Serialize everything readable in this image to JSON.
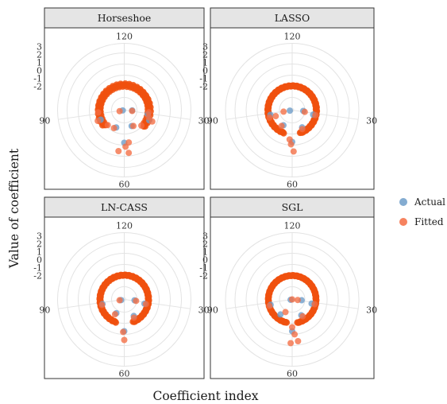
{
  "chart_data": {
    "type": "scatter",
    "coord": "polar",
    "xlabel": "Coefficient index",
    "ylabel": "Value of coefficient",
    "y_ticks": [
      "3",
      "2",
      "1",
      "0",
      "-1",
      "-2"
    ],
    "ylim": [
      -5,
      3.4
    ],
    "angle_ticks": [
      {
        "index": 120,
        "label": "120",
        "deg": 0
      },
      {
        "index": 30,
        "label": "30",
        "deg": 98
      },
      {
        "index": 60,
        "label": "60",
        "deg": 180
      },
      {
        "index": 90,
        "label": "90",
        "deg": 262
      }
    ],
    "legend": {
      "entries": [
        {
          "label": "Actual",
          "color": "#6f9ec9"
        },
        {
          "label": "Fitted",
          "color": "#f46d43"
        }
      ]
    },
    "series_colors": {
      "actual": "#6f9ec9",
      "fitted": "#f46d43",
      "dense_fitted": "#f0500e"
    },
    "panels": [
      {
        "name": "Horseshoe",
        "ring": {
          "radius": -1.85,
          "gap": [
            130,
            230
          ],
          "wobble": 0.18
        },
        "actual": [
          [
            -4.0,
            92
          ],
          [
            -4.8,
            260
          ],
          [
            -0.9,
            180
          ],
          [
            -2.6,
            205
          ],
          [
            -2.8,
            155
          ],
          [
            -1.6,
            112
          ],
          [
            -1.8,
            248
          ],
          [
            -2.0,
            100
          ]
        ],
        "fitted": [
          [
            -4.0,
            96
          ],
          [
            -4.4,
            258
          ],
          [
            -0.9,
            172
          ],
          [
            -2.4,
            210
          ],
          [
            -2.7,
            150
          ],
          [
            -1.2,
            112
          ],
          [
            -1.4,
            248
          ],
          [
            -1.8,
            106
          ],
          [
            0.4,
            174
          ],
          [
            0.2,
            188
          ],
          [
            -0.4,
            178
          ],
          [
            -2.2,
            228
          ],
          [
            -2.1,
            132
          ],
          [
            -1.7,
            265
          ],
          [
            -1.9,
            95
          ]
        ]
      },
      {
        "name": "LASSO",
        "ring": {
          "radius": -1.95,
          "gap": [
            162,
            198
          ],
          "wobble": 0.05
        },
        "actual": [
          [
            -4.7,
            258
          ],
          [
            -3.6,
            94
          ],
          [
            -1.0,
            180
          ],
          [
            -2.8,
            210
          ],
          [
            -2.5,
            150
          ],
          [
            -2.3,
            102
          ],
          [
            -2.2,
            258
          ]
        ],
        "fitted": [
          [
            -3.9,
            260
          ],
          [
            -3.4,
            98
          ],
          [
            -0.7,
            182
          ],
          [
            -2.6,
            214
          ],
          [
            -2.3,
            152
          ],
          [
            -2.0,
            102
          ],
          [
            -2.0,
            252
          ],
          [
            0.2,
            178
          ],
          [
            -1.3,
            185
          ],
          [
            -2.8,
            250
          ]
        ]
      },
      {
        "name": "LN-CASS",
        "ring": {
          "radius": -1.95,
          "gap": [
            160,
            200
          ],
          "wobble": 0.05
        },
        "actual": [
          [
            -4.6,
            258
          ],
          [
            -3.7,
            95
          ],
          [
            -1.0,
            180
          ],
          [
            -3.0,
            210
          ],
          [
            -2.6,
            150
          ],
          [
            -2.4,
            102
          ],
          [
            -2.2,
            258
          ]
        ],
        "fitted": [
          [
            -4.4,
            260
          ],
          [
            -3.5,
            97
          ],
          [
            -0.9,
            182
          ],
          [
            -2.8,
            212
          ],
          [
            -2.4,
            152
          ],
          [
            -2.2,
            102
          ],
          [
            -2.1,
            256
          ],
          [
            0.1,
            180
          ]
        ]
      },
      {
        "name": "SGL",
        "ring": {
          "radius": -2.0,
          "gap": [
            168,
            192
          ],
          "wobble": 0.03
        },
        "actual": [
          [
            -4.8,
            257
          ],
          [
            -3.8,
            95
          ],
          [
            -1.0,
            180
          ],
          [
            -2.6,
            218
          ],
          [
            -2.7,
            150
          ],
          [
            -2.5,
            102
          ],
          [
            -2.2,
            256
          ]
        ],
        "fitted": [
          [
            -5.0,
            262
          ],
          [
            -4.3,
            96
          ],
          [
            -0.6,
            176
          ],
          [
            -3.2,
            208
          ],
          [
            -2.5,
            148
          ],
          [
            -2.1,
            102
          ],
          [
            -2.0,
            254
          ],
          [
            0.5,
            182
          ],
          [
            0.3,
            172
          ],
          [
            -1.5,
            180
          ]
        ]
      }
    ]
  }
}
